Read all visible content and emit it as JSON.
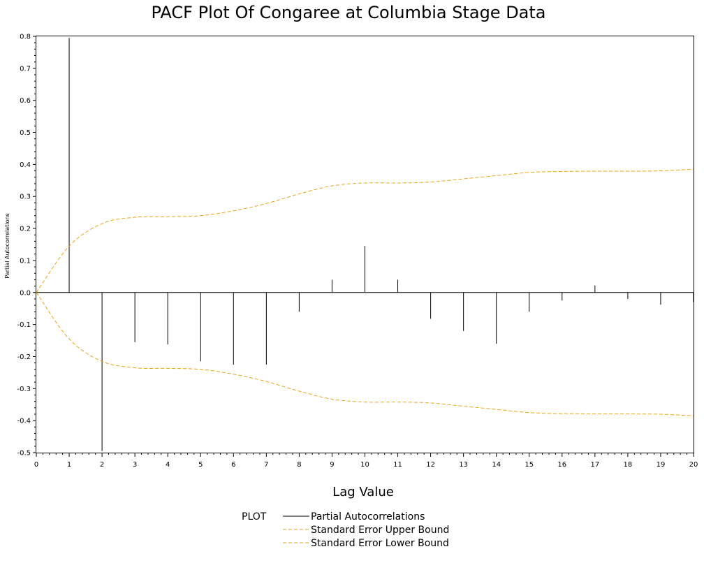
{
  "chart_data": {
    "type": "bar",
    "title": "PACF Plot Of Congaree at Columbia Stage Data",
    "xlabel": "Lag Value",
    "ylabel": "Partial Autocorrelations",
    "xlim": [
      0,
      20
    ],
    "ylim": [
      -0.5,
      0.8
    ],
    "x_ticks": [
      "0",
      "1",
      "2",
      "3",
      "4",
      "5",
      "6",
      "7",
      "8",
      "9",
      "10",
      "11",
      "12",
      "13",
      "14",
      "15",
      "16",
      "17",
      "18",
      "19",
      "20"
    ],
    "y_ticks": [
      "0.8",
      "0.7",
      "0.6",
      "0.5",
      "0.4",
      "0.3",
      "0.2",
      "0.1",
      "0.0",
      "-0.1",
      "-0.2",
      "-0.3",
      "-0.4",
      "-0.5"
    ],
    "grid": false,
    "legend": {
      "position": "bottom",
      "title": "PLOT",
      "entries": [
        "Partial Autocorrelations",
        "Standard Error Upper Bound",
        "Standard Error Lower Bound"
      ]
    },
    "series": [
      {
        "name": "Partial Autocorrelations",
        "type": "needle",
        "color": "#000000",
        "x": [
          1,
          2,
          3,
          4,
          5,
          6,
          7,
          8,
          9,
          10,
          11,
          12,
          13,
          14,
          15,
          16,
          17,
          18,
          19,
          20
        ],
        "values": [
          0.795,
          -0.495,
          -0.155,
          -0.162,
          -0.215,
          -0.225,
          -0.225,
          -0.06,
          0.04,
          0.145,
          0.04,
          -0.082,
          -0.12,
          -0.16,
          -0.06,
          -0.025,
          0.022,
          -0.02,
          -0.038,
          -0.03
        ]
      },
      {
        "name": "Standard Error Upper Bound",
        "type": "line",
        "color": "#E8A317",
        "dashed": true,
        "x": [
          0,
          1,
          2,
          3,
          4,
          5,
          6,
          7,
          8,
          9,
          10,
          11,
          12,
          13,
          14,
          15,
          16,
          17,
          18,
          19,
          20
        ],
        "values": [
          0.0,
          0.145,
          0.215,
          0.235,
          0.237,
          0.24,
          0.255,
          0.278,
          0.308,
          0.333,
          0.342,
          0.342,
          0.345,
          0.355,
          0.365,
          0.375,
          0.378,
          0.379,
          0.379,
          0.38,
          0.385
        ]
      },
      {
        "name": "Standard Error Lower Bound",
        "type": "line",
        "color": "#E8A317",
        "dashed": true,
        "x": [
          0,
          1,
          2,
          3,
          4,
          5,
          6,
          7,
          8,
          9,
          10,
          11,
          12,
          13,
          14,
          15,
          16,
          17,
          18,
          19,
          20
        ],
        "values": [
          0.0,
          -0.145,
          -0.215,
          -0.235,
          -0.237,
          -0.24,
          -0.255,
          -0.278,
          -0.308,
          -0.333,
          -0.342,
          -0.342,
          -0.345,
          -0.355,
          -0.365,
          -0.375,
          -0.378,
          -0.379,
          -0.379,
          -0.38,
          -0.385
        ]
      }
    ]
  }
}
